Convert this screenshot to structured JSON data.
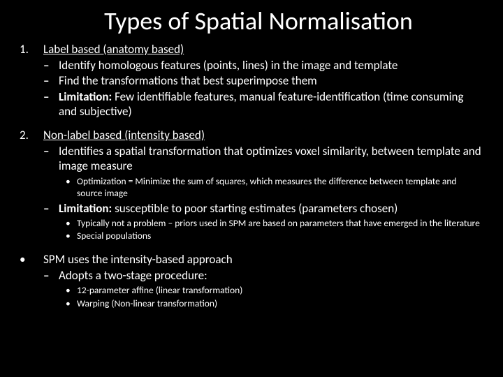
{
  "title": "Types of Spatial Normalisation",
  "s1": {
    "num": "1.",
    "head": "Label based (anatomy based)",
    "d1": "Identify homologous features (points, lines) in the image and template",
    "d2": "Find the transformations that best superimpose them",
    "d3_label": "Limitation:",
    "d3_rest": " Few  identifiable features, manual feature-identification (time consuming and subjective)"
  },
  "s2": {
    "num": "2.",
    "head": "Non-label based (intensity based)",
    "d1": "Identifies a spatial transformation that optimizes voxel similarity,  between template and image measure",
    "d1_sub1": "Optimization = Minimize the sum of squares, which measures the difference between template and source image",
    "d2_label": "Limitation:",
    "d2_rest": " susceptible to poor starting estimates (parameters chosen)",
    "d2_sub1": "Typically not a problem – priors used in SPM are based on parameters that have emerged in the literature",
    "d2_sub2": "Special populations"
  },
  "s3": {
    "num": "•",
    "head": "SPM uses the intensity-based approach",
    "d1": "Adopts a two-stage procedure:",
    "d1_sub1": "12-parameter affine (linear transformation)",
    "d1_sub2": "Warping (Non-linear transformation)"
  }
}
